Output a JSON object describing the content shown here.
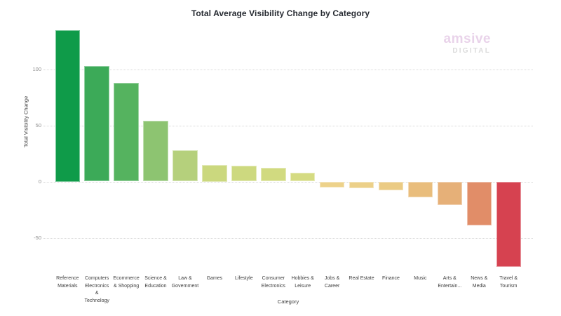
{
  "page": {
    "background": "#ffffff"
  },
  "header": {
    "title": "Total Average Visibility Change by Category"
  },
  "brand": {
    "name": "amsive",
    "sub": "DIGITAL",
    "name_color": "#e9d3ea",
    "sub_color": "#dcdcdc"
  },
  "chart_data": {
    "type": "bar",
    "title": "Total Average Visibility Change by Category",
    "xlabel": "Category",
    "ylabel": "Total Visibility Change",
    "ylim": [
      -80,
      140
    ],
    "grid": true,
    "legend": "none",
    "ytick_values": [
      100,
      50,
      0,
      -50
    ],
    "ytick_labels": [
      "100",
      "50",
      "0",
      "-50"
    ],
    "categories": [
      "Reference Materials",
      "Computers Electronics & Technology",
      "Ecommerce & Shopping",
      "Science & Education",
      "Law & Government",
      "Games",
      "Lifestyle",
      "Consumer Electronics",
      "Hobbies & Leisure",
      "Jobs & Career",
      "Real Estate",
      "Finance",
      "Music",
      "Arts & Entertain...",
      "News & Media",
      "Travel & Tourism"
    ],
    "display_labels": [
      "Reference\nMaterials",
      "Computers\nElectronics\n&\nTechnology",
      "Ecommerce\n& Shopping",
      "Science &\nEducation",
      "Law &\nGovernment",
      "Games",
      "Lifestyle",
      "Consumer\nElectronics",
      "Hobbies &\nLeisure",
      "Jobs &\nCareer",
      "Real Estate",
      "Finance",
      "Music",
      "Arts &\nEntertain...",
      "News &\nMedia",
      "Travel &\nTourism"
    ],
    "values": [
      135,
      103,
      88,
      54,
      28,
      15,
      14,
      12,
      8,
      -5,
      -6,
      -8,
      -14,
      -21,
      -39,
      -76
    ],
    "bar_colors": [
      "#0f9b49",
      "#3caa58",
      "#55b35f",
      "#8dc471",
      "#b5d07c",
      "#cbd87e",
      "#cdd97f",
      "#d1da80",
      "#d5db82",
      "#edd28b",
      "#ecd089",
      "#ebcb84",
      "#e9bd7c",
      "#e6b078",
      "#e18d68",
      "#d64250"
    ],
    "gridline_color": "#d8d8d8"
  }
}
